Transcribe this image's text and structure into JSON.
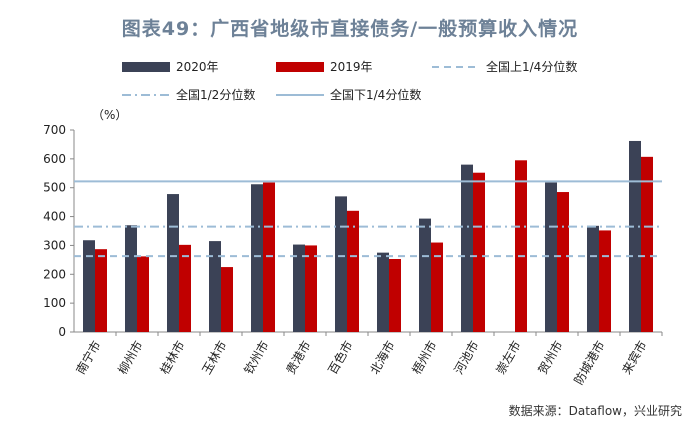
{
  "title": "图表49：广西省地级市直接债务/一般预算收入情况",
  "source": "数据来源：Dataflow，兴业研究",
  "legend": [
    {
      "label": "2020年",
      "style": "bar",
      "color": "#3b4256"
    },
    {
      "label": "2019年",
      "style": "bar",
      "color": "#c00000"
    },
    {
      "label": "全国上1/4分位数",
      "style": "dashed",
      "color": "#9dbcd6"
    },
    {
      "label": "全国1/2分位数",
      "style": "dashdot",
      "color": "#9dbcd6"
    },
    {
      "label": "全国下1/4分位数",
      "style": "solid",
      "color": "#9dbcd6"
    }
  ],
  "chart_data": {
    "type": "bar",
    "ylabel": "（%）",
    "xlabel": "",
    "ylim": [
      0,
      700
    ],
    "yticks": [
      0,
      100,
      200,
      300,
      400,
      500,
      600,
      700
    ],
    "grid": false,
    "categories": [
      "南宁市",
      "柳州市",
      "桂林市",
      "玉林市",
      "钦州市",
      "贵港市",
      "百色市",
      "北海市",
      "梧州市",
      "河池市",
      "崇左市",
      "贺州市",
      "防城港市",
      "来宾市"
    ],
    "series": [
      {
        "name": "2020年",
        "color": "#3b4256",
        "values": [
          318,
          370,
          478,
          315,
          512,
          303,
          470,
          275,
          393,
          580,
          null,
          518,
          368,
          662
        ]
      },
      {
        "name": "2019年",
        "color": "#c00000",
        "values": [
          287,
          262,
          302,
          225,
          518,
          300,
          420,
          253,
          310,
          552,
          595,
          485,
          352,
          607
        ]
      }
    ],
    "reference_lines": [
      {
        "name": "全国上1/4分位数",
        "value": 263,
        "style": "dashed",
        "color": "#9dbcd6"
      },
      {
        "name": "全国1/2分位数",
        "value": 365,
        "style": "dashdot",
        "color": "#9dbcd6"
      },
      {
        "name": "全国下1/4分位数",
        "value": 522,
        "style": "solid",
        "color": "#9dbcd6"
      }
    ]
  }
}
